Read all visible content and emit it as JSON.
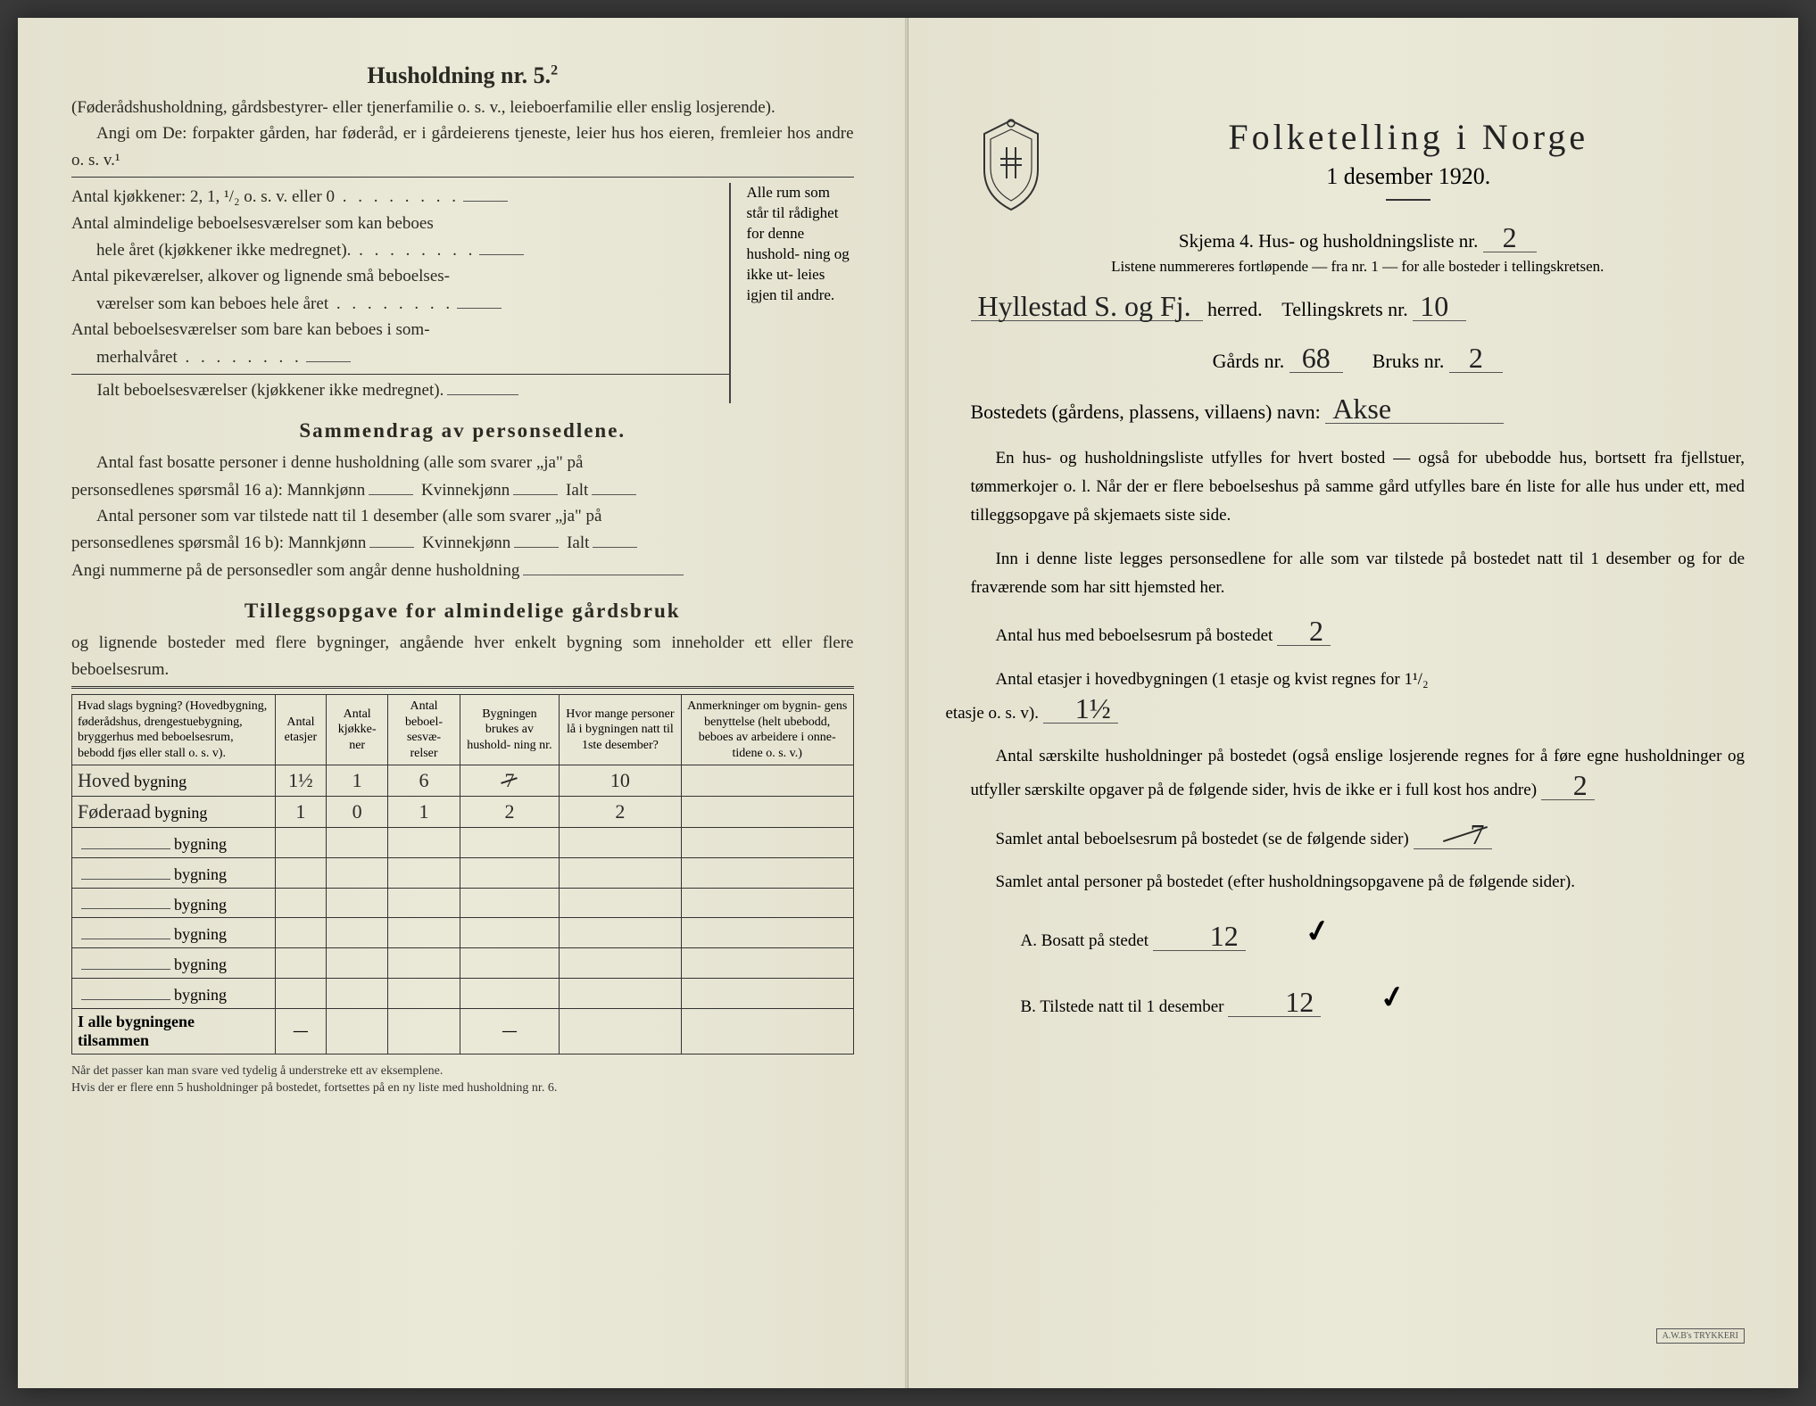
{
  "left": {
    "heading": "Husholdning nr. 5.",
    "heading_sup": "2",
    "intro1": "(Føderådshusholdning, gårdsbestyrer- eller tjenerfamilie o. s. v., leieboerfamilie eller enslig losjerende).",
    "intro2": "Angi om De: forpakter gården, har føderåd, er i gårdeierens tjeneste, leier hus hos eieren, fremleier hos andre o. s. v.¹",
    "lines": {
      "l1": "Antal kjøkkener: 2, 1, ¹/₂ o. s. v. eller 0",
      "l2a": "Antal almindelige beboelsesværelser som kan beboes",
      "l2b": "hele året (kjøkkener ikke medregnet).",
      "l3a": "Antal pikeværelser, alkover og lignende små beboelses-",
      "l3b": "værelser som kan beboes hele året",
      "l4a": "Antal beboelsesværelser som bare kan beboes i som-",
      "l4b": "merhalvåret",
      "l5": "Ialt beboelsesværelser (kjøkkener ikke medregnet).",
      "brace": "Alle rum som står til rådighet for denne hushold- ning og ikke ut- leies igjen til andre."
    },
    "sammendrag_h": "Sammendrag av personsedlene.",
    "sam1a": "Antal fast bosatte personer i denne husholdning (alle som svarer „ja\" på",
    "sam1b": "personsedlenes spørsmål 16 a): Mannkjønn",
    "sam1c": "Kvinnekjønn",
    "sam1d": "Ialt",
    "sam2a": "Antal personer som var tilstede natt til 1 desember (alle som svarer „ja\" på",
    "sam2b": "personsedlenes spørsmål 16 b): Mannkjønn",
    "sam3": "Angi nummerne på de personsedler som angår denne husholdning",
    "tillegg_h": "Tilleggsopgave for almindelige gårdsbruk",
    "tillegg_p": "og lignende bosteder med flere bygninger, angående hver enkelt bygning som inneholder ett eller flere beboelsesrum.",
    "table": {
      "columns": [
        "Hvad slags bygning?\n(Hovedbygning, føderådshus, drengestuebygning, bryggerhus med beboelsesrum, bebodd fjøs eller stall o. s. v).",
        "Antal etasjer",
        "Antal kjøkke- ner",
        "Antal beboel- sesvæ- relser",
        "Bygningen brukes av hushold- ning nr.",
        "Hvor mange personer lå i bygningen natt til 1ste desember?",
        "Anmerkninger om bygnin- gens benyttelse (helt ubebodd, beboes av arbeidere i onne- tidene o. s. v.)"
      ],
      "rows": [
        {
          "label_hand": "Hoved",
          "label": "bygning",
          "c": [
            "1½",
            "1",
            "6",
            "7",
            "10",
            ""
          ],
          "strike_col": 3
        },
        {
          "label_hand": "Føderaad",
          "label": "bygning",
          "c": [
            "1",
            "0",
            "1",
            "2",
            "2",
            ""
          ]
        },
        {
          "label_hand": "",
          "label": "bygning",
          "c": [
            "",
            "",
            "",
            "",
            "",
            ""
          ]
        },
        {
          "label_hand": "",
          "label": "bygning",
          "c": [
            "",
            "",
            "",
            "",
            "",
            ""
          ]
        },
        {
          "label_hand": "",
          "label": "bygning",
          "c": [
            "",
            "",
            "",
            "",
            "",
            ""
          ]
        },
        {
          "label_hand": "",
          "label": "bygning",
          "c": [
            "",
            "",
            "",
            "",
            "",
            ""
          ]
        },
        {
          "label_hand": "",
          "label": "bygning",
          "c": [
            "",
            "",
            "",
            "",
            "",
            ""
          ]
        },
        {
          "label_hand": "",
          "label": "bygning",
          "c": [
            "",
            "",
            "",
            "",
            "",
            ""
          ]
        }
      ],
      "total_label": "I alle bygningene tilsammen",
      "total": [
        "—",
        "",
        "",
        "—",
        "",
        ""
      ]
    },
    "footnote": "Når det passer kan man svare ved tydelig å understreke ett av eksemplene.\nHvis der er flere enn 5 husholdninger på bostedet, fortsettes på en ny liste med husholdning nr. 6."
  },
  "right": {
    "title": "Folketelling i Norge",
    "subtitle": "1 desember 1920.",
    "skjema": "Skjema 4.  Hus- og husholdningsliste nr.",
    "skjema_val": "2",
    "note": "Listene nummereres fortløpende — fra nr. 1 — for alle bosteder i tellingskretsen.",
    "herred_hand": "Hyllestad S. og Fj.",
    "herred_label": "herred.",
    "krets_label": "Tellingskrets nr.",
    "krets_val": "10",
    "gard_label": "Gårds nr.",
    "gard_val": "68",
    "bruk_label": "Bruks nr.",
    "bruk_val": "2",
    "bosted_label": "Bostedets (gårdens, plassens, villaens) navn:",
    "bosted_val": "Akse",
    "p1": "En hus- og husholdningsliste utfylles for hvert bosted — også for ubebodde hus, bortsett fra fjellstuer, tømmerkojer o. l.  Når der er flere beboelseshus på samme gård utfylles bare én liste for alle hus under ett, med tilleggsopgave på skjemaets siste side.",
    "p2": "Inn i denne liste legges personsedlene for alle som var tilstede på bostedet natt til 1 desember og for de fraværende som har sitt hjemsted her.",
    "q1_label": "Antal hus med beboelsesrum på bostedet",
    "q1_val": "2",
    "q2_label_a": "Antal etasjer i hovedbygningen (1 etasje og kvist regnes for 1¹/₂",
    "q2_label_b": "etasje o. s. v).",
    "q2_val": "1½",
    "q3_a": "Antal særskilte husholdninger på bostedet (også enslige losjerende regnes for å føre egne husholdninger og utfyller særskilte opgaver på de følgende sider, hvis de ikke er i full kost hos andre)",
    "q3_val": "2",
    "q4_label": "Samlet antal beboelsesrum på bostedet (se de følgende sider)",
    "q4_val": "7",
    "q5_label": "Samlet antal personer på bostedet (efter husholdningsopgavene på de følgende sider).",
    "qA_label": "A.  Bosatt på stedet",
    "qA_val": "12",
    "qB_label": "B.  Tilstede natt til 1 desember",
    "qB_val": "12",
    "stamp": "A.W.B's TRYKKERI"
  },
  "colors": {
    "paper": "#e8e6d4",
    "ink": "#2a2a22",
    "hand": "#2a2a28",
    "rule": "#333333"
  }
}
